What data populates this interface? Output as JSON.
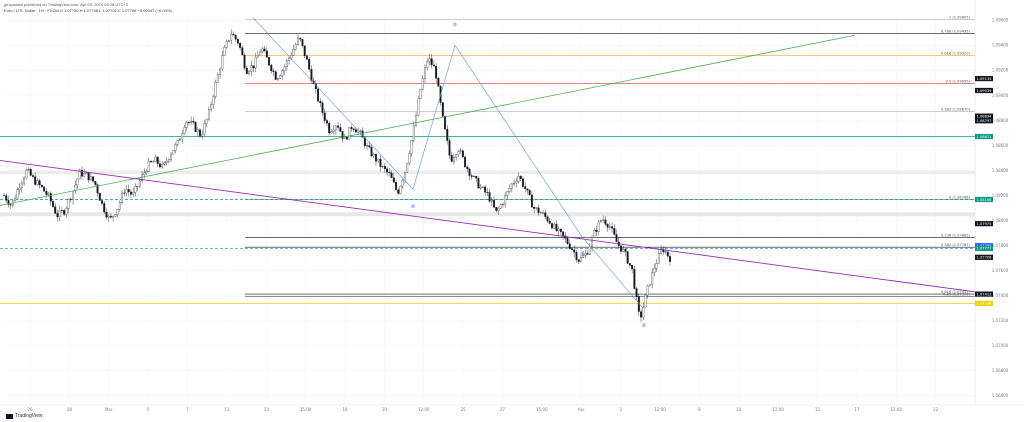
{
  "header": {
    "published": "jpropadam published on TradingView.com, Apr 03, 2024 08:28 UTC+2",
    "symbol_line": "Euro / U.S. Dollar · 1H · FXCM  O 1.07750  H 1.07758  L 1.07701  C 1.07706  −0.00047 (−0.04%)"
  },
  "brand": {
    "name": "TradingView"
  },
  "colors": {
    "candle": "#131722",
    "trend_up": "#4caf50",
    "trend_down": "#9c27b0",
    "teal": "#089981",
    "wave_line": "#5b9bd5",
    "yellow": "#f0d000"
  },
  "chart_data": {
    "type": "candlestick",
    "x_ticks": [
      "26",
      "28",
      "Mar",
      "5",
      "7",
      "11",
      "13",
      "15:00",
      "18",
      "20",
      "12:00",
      "25",
      "27",
      "15:00",
      "Apr",
      "3",
      "12:00",
      "8",
      "10",
      "12:00",
      "15",
      "17",
      "12:00",
      "22"
    ],
    "y_ticks": [
      "1.09600",
      "1.09400",
      "1.09200",
      "1.09000",
      "1.08800",
      "1.08600",
      "1.08400",
      "1.08200",
      "1.08000",
      "1.07800",
      "1.07600",
      "1.07400",
      "1.07200",
      "1.07000",
      "1.06800",
      "1.06600"
    ],
    "ylim": [
      1.0655,
      1.0965
    ],
    "fib_levels": [
      {
        "label": "1 (1.09605)",
        "price": 1.09605,
        "color": "#a0a0a0"
      },
      {
        "label": "0.786 (1.09495)",
        "price": 1.09495,
        "color": "#131722"
      },
      {
        "label": "0.618 (1.09320)",
        "price": 1.0932,
        "color": "#f5a623"
      },
      {
        "label": "0.5 (1.09095)",
        "price": 1.09095,
        "color": "#e53935"
      },
      {
        "label": "0.382 (1.08870)",
        "price": 1.0887,
        "color": "#9e9e9e"
      },
      {
        "label": "0 (1.08168)",
        "price": 1.08168,
        "color": "#2e7d32"
      },
      {
        "label": "0.236 (1.07865)",
        "price": 1.07865,
        "color": "#131722"
      },
      {
        "label": "0.382 (1.07787)",
        "price": 1.07787,
        "color": "#131722"
      },
      {
        "label": "0.618 (1.07412)",
        "price": 1.07412,
        "color": "#131722"
      },
      {
        "label": "0.65 (1.07391)",
        "price": 1.07391,
        "color": "#131722"
      }
    ],
    "price_badges": [
      {
        "label": "1.09134",
        "price": 1.09134,
        "color": "#131722"
      },
      {
        "label": "1.09039",
        "price": 1.09039,
        "color": "#131722"
      },
      {
        "label": "1.08834",
        "price": 1.08834,
        "color": "#131722"
      },
      {
        "label": "1.08797",
        "price": 1.08797,
        "color": "#131722"
      },
      {
        "label": "1.08671",
        "price": 1.08671,
        "color": "#089981"
      },
      {
        "label": "1.08168",
        "price": 1.08168,
        "color": "#089981"
      },
      {
        "label": "1.07975",
        "price": 1.07975,
        "color": "#131722"
      },
      {
        "label": "1.07799",
        "price": 1.07799,
        "color": "#2962ff"
      },
      {
        "label": "1.07777",
        "price": 1.07777,
        "color": "#089981"
      },
      {
        "label": "1.07706",
        "price": 1.07706,
        "color": "#131722"
      },
      {
        "label": "1.07412",
        "price": 1.07412,
        "color": "#131722"
      },
      {
        "label": "1.07338",
        "price": 1.07338,
        "color": "#f0d000"
      }
    ],
    "wave_labels": [
      "④",
      "⑤",
      "④",
      "⑤"
    ],
    "path": [
      1.082,
      1.0812,
      1.0828,
      1.084,
      1.0832,
      1.0826,
      1.0818,
      1.0804,
      1.0808,
      1.0822,
      1.0838,
      1.0836,
      1.083,
      1.0812,
      1.08,
      1.081,
      1.0826,
      1.082,
      1.0832,
      1.0844,
      1.0848,
      1.0842,
      1.0854,
      1.0862,
      1.088,
      1.0876,
      1.0868,
      1.0884,
      1.091,
      1.0934,
      1.095,
      1.0942,
      1.092,
      1.0924,
      1.0938,
      1.0926,
      1.0914,
      1.0922,
      1.0934,
      1.0946,
      1.0928,
      1.0906,
      1.0888,
      1.0872,
      1.0878,
      1.0864,
      1.0876,
      1.087,
      1.0858,
      1.085,
      1.0842,
      1.0836,
      1.0822,
      1.084,
      1.0868,
      1.0904,
      1.093,
      1.092,
      1.088,
      1.0848,
      1.0858,
      1.0844,
      1.0834,
      1.0826,
      1.082,
      1.0806,
      1.0816,
      1.0828,
      1.0836,
      1.0824,
      1.081,
      1.0806,
      1.08,
      1.0792,
      1.0786,
      1.0778,
      1.0768,
      1.0774,
      1.079,
      1.0802,
      1.0796,
      1.0782,
      1.0774,
      1.076,
      1.072,
      1.0744,
      1.0764,
      1.0778,
      1.077
    ]
  }
}
